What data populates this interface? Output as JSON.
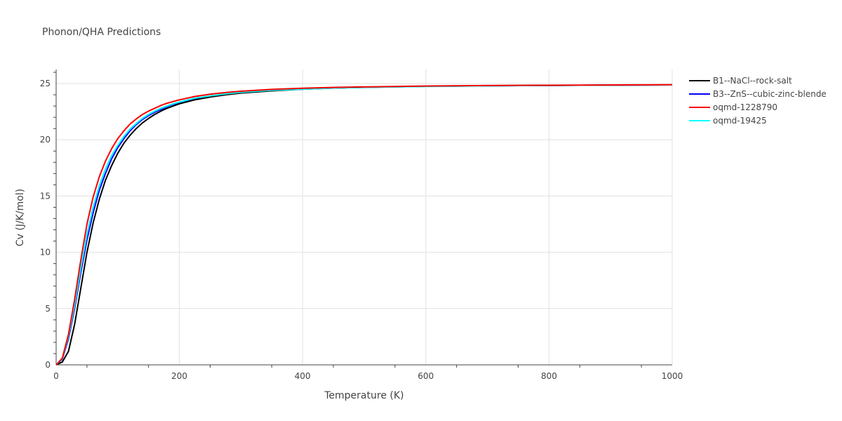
{
  "chart_data": {
    "type": "line",
    "title": "Phonon/QHA Predictions",
    "xlabel": "Temperature (K)",
    "ylabel": "Cv (J/K/mol)",
    "xlim": [
      0,
      1000
    ],
    "ylim": [
      0,
      26.25
    ],
    "x_ticks": [
      0,
      200,
      400,
      600,
      800,
      1000
    ],
    "y_ticks": [
      0,
      5,
      10,
      15,
      20,
      25
    ],
    "grid": true,
    "legend_position": "top-right outside",
    "series": [
      {
        "name": "B1--NaCl--rock-salt",
        "color": "#000000",
        "x": [
          0,
          10,
          20,
          30,
          40,
          50,
          60,
          70,
          80,
          90,
          100,
          110,
          120,
          130,
          140,
          150,
          160,
          170,
          180,
          190,
          200,
          225,
          250,
          275,
          300,
          350,
          400,
          450,
          500,
          600,
          700,
          800,
          900,
          1000
        ],
        "y": [
          0,
          0.25,
          1.2,
          3.6,
          6.8,
          10.0,
          12.6,
          14.7,
          16.4,
          17.7,
          18.8,
          19.7,
          20.4,
          21.0,
          21.5,
          21.9,
          22.25,
          22.55,
          22.8,
          23.0,
          23.2,
          23.55,
          23.8,
          24.0,
          24.15,
          24.35,
          24.5,
          24.6,
          24.66,
          24.75,
          24.8,
          24.83,
          24.86,
          24.88
        ]
      },
      {
        "name": "B3--ZnS--cubic-zinc-blende",
        "color": "#0000ff",
        "x": [
          0,
          10,
          20,
          30,
          40,
          50,
          60,
          70,
          80,
          90,
          100,
          110,
          120,
          130,
          140,
          150,
          160,
          170,
          180,
          190,
          200,
          225,
          250,
          275,
          300,
          350,
          400,
          450,
          500,
          600,
          700,
          800,
          900,
          1000
        ],
        "y": [
          0,
          0.5,
          2.3,
          5.0,
          8.2,
          11.1,
          13.5,
          15.5,
          17.0,
          18.3,
          19.3,
          20.1,
          20.8,
          21.35,
          21.8,
          22.15,
          22.45,
          22.7,
          22.95,
          23.15,
          23.3,
          23.65,
          23.85,
          24.05,
          24.2,
          24.4,
          24.5,
          24.6,
          24.66,
          24.75,
          24.8,
          24.83,
          24.86,
          24.88
        ]
      },
      {
        "name": "oqmd-1228790",
        "color": "#ff0000",
        "x": [
          0,
          10,
          20,
          30,
          40,
          50,
          60,
          70,
          80,
          90,
          100,
          110,
          120,
          130,
          140,
          150,
          160,
          170,
          180,
          190,
          200,
          225,
          250,
          275,
          300,
          350,
          400,
          450,
          500,
          600,
          700,
          800,
          900,
          1000
        ],
        "y": [
          0,
          0.6,
          2.7,
          5.8,
          9.3,
          12.5,
          14.9,
          16.7,
          18.1,
          19.2,
          20.1,
          20.8,
          21.4,
          21.85,
          22.25,
          22.55,
          22.8,
          23.05,
          23.25,
          23.4,
          23.55,
          23.85,
          24.05,
          24.2,
          24.32,
          24.48,
          24.58,
          24.65,
          24.7,
          24.78,
          24.82,
          24.85,
          24.87,
          24.89
        ]
      },
      {
        "name": "oqmd-19425",
        "color": "#00ffff",
        "x": [
          0,
          10,
          20,
          30,
          40,
          50,
          60,
          70,
          80,
          90,
          100,
          110,
          120,
          130,
          140,
          150,
          160,
          170,
          180,
          190,
          200,
          225,
          250,
          275,
          300,
          350,
          400,
          450,
          500,
          600,
          700,
          800,
          900,
          1000
        ],
        "y": [
          0,
          0.55,
          2.5,
          5.3,
          8.6,
          11.6,
          14.0,
          15.9,
          17.4,
          18.6,
          19.5,
          20.3,
          20.95,
          21.45,
          21.9,
          22.25,
          22.55,
          22.8,
          23.0,
          23.2,
          23.35,
          23.7,
          23.9,
          24.08,
          24.22,
          24.4,
          24.5,
          24.6,
          24.66,
          24.74,
          24.79,
          24.83,
          24.86,
          24.88
        ]
      }
    ]
  }
}
